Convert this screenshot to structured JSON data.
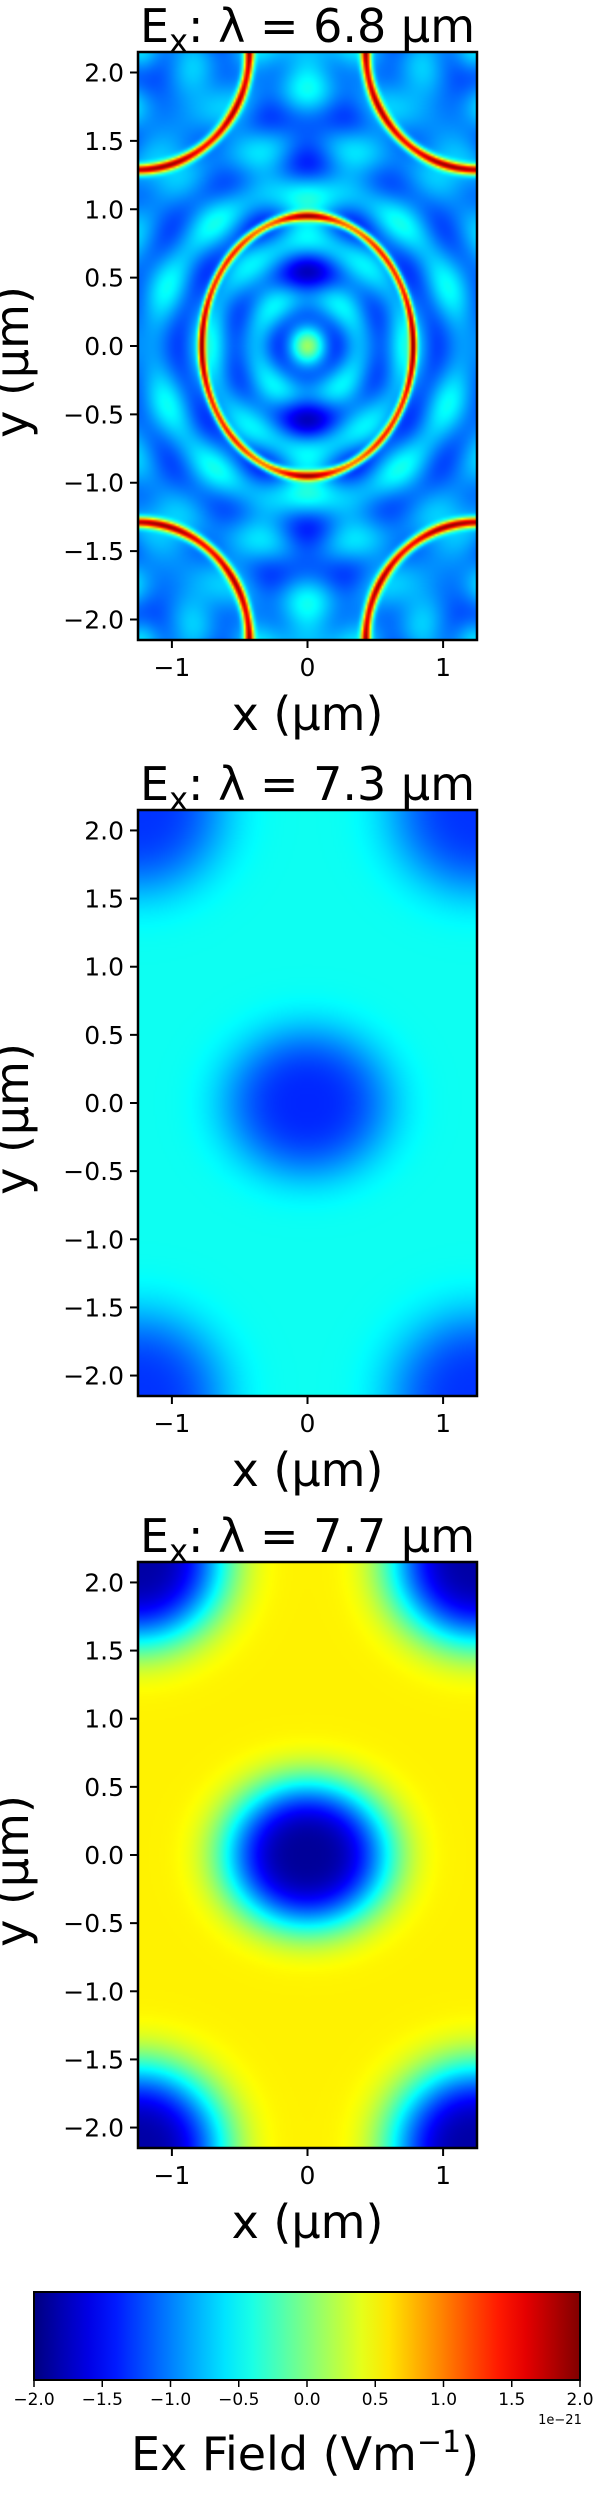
{
  "chart_data": [
    {
      "type": "heatmap",
      "title_component": "E",
      "title_sub": "x",
      "title_rest": ":  λ = 6.8 μm",
      "xlabel": "x (μm)",
      "ylabel": "y (μm)",
      "xlim": [
        -1.25,
        1.25
      ],
      "ylim": [
        -2.15,
        2.15
      ],
      "xticks": [
        -1,
        0,
        1
      ],
      "xtick_labels": [
        "−1",
        "0",
        "1"
      ],
      "yticks": [
        -2.0,
        -1.5,
        -1.0,
        -0.5,
        0.0,
        0.5,
        1.0,
        1.5,
        2.0
      ],
      "ytick_labels": [
        "−2.0",
        "−1.5",
        "−1.0",
        "−0.5",
        "0.0",
        "0.5",
        "1.0",
        "1.5",
        "2.0"
      ],
      "pattern": "high-order resonance: concentric rings around center, bright red/yellow crescent arcs at x≈±0.8 near y=0 and at the four corners",
      "background_value": -0.9
    },
    {
      "type": "heatmap",
      "title_component": "E",
      "title_sub": "x",
      "title_rest": ":  λ = 7.3 μm",
      "xlabel": "x (μm)",
      "ylabel": "y (μm)",
      "xlim": [
        -1.25,
        1.25
      ],
      "ylim": [
        -2.15,
        2.15
      ],
      "xticks": [
        -1,
        0,
        1
      ],
      "xtick_labels": [
        "−1",
        "0",
        "1"
      ],
      "yticks": [
        -2.0,
        -1.5,
        -1.0,
        -0.5,
        0.0,
        0.5,
        1.0,
        1.5,
        2.0
      ],
      "ytick_labels": [
        "−2.0",
        "−1.5",
        "−1.0",
        "−0.5",
        "0.0",
        "0.5",
        "1.0",
        "1.5",
        "2.0"
      ],
      "pattern": "weak field: elliptical blue minimum at center, blue lobes at four corners, cyan-green background",
      "background_value": -0.45,
      "center_min_value": -1.35
    },
    {
      "type": "heatmap",
      "title_component": "E",
      "title_sub": "x",
      "title_rest": ":  λ = 7.7 μm",
      "xlabel": "x (μm)",
      "ylabel": "y (μm)",
      "xlim": [
        -1.25,
        1.25
      ],
      "ylim": [
        -2.15,
        2.15
      ],
      "xticks": [
        -1,
        0,
        1
      ],
      "xtick_labels": [
        "−1",
        "0",
        "1"
      ],
      "yticks": [
        -2.0,
        -1.5,
        -1.0,
        -0.5,
        0.0,
        0.5,
        1.0,
        1.5,
        2.0
      ],
      "ytick_labels": [
        "−2.0",
        "−1.5",
        "−1.0",
        "−0.5",
        "0.0",
        "0.5",
        "1.0",
        "1.5",
        "2.0"
      ],
      "pattern": "strong field: dark-blue elliptical minimum at center, dark-blue lobes at four corners, yellow background",
      "background_value": 0.55,
      "center_min_value": -1.9
    }
  ],
  "colorbar": {
    "label_main": "Ex  Field (Vm",
    "label_sup": "−1",
    "label_close": ")",
    "range": [
      -2.0,
      2.0
    ],
    "ticks": [
      -2.0,
      -1.5,
      -1.0,
      -0.5,
      0.0,
      0.5,
      1.0,
      1.5,
      2.0
    ],
    "tick_labels": [
      "−2.0",
      "−1.5",
      "−1.0",
      "−0.5",
      "0.0",
      "0.5",
      "1.0",
      "1.5",
      "2.0"
    ],
    "offset_text": "1e−21",
    "colormap": "jet"
  }
}
